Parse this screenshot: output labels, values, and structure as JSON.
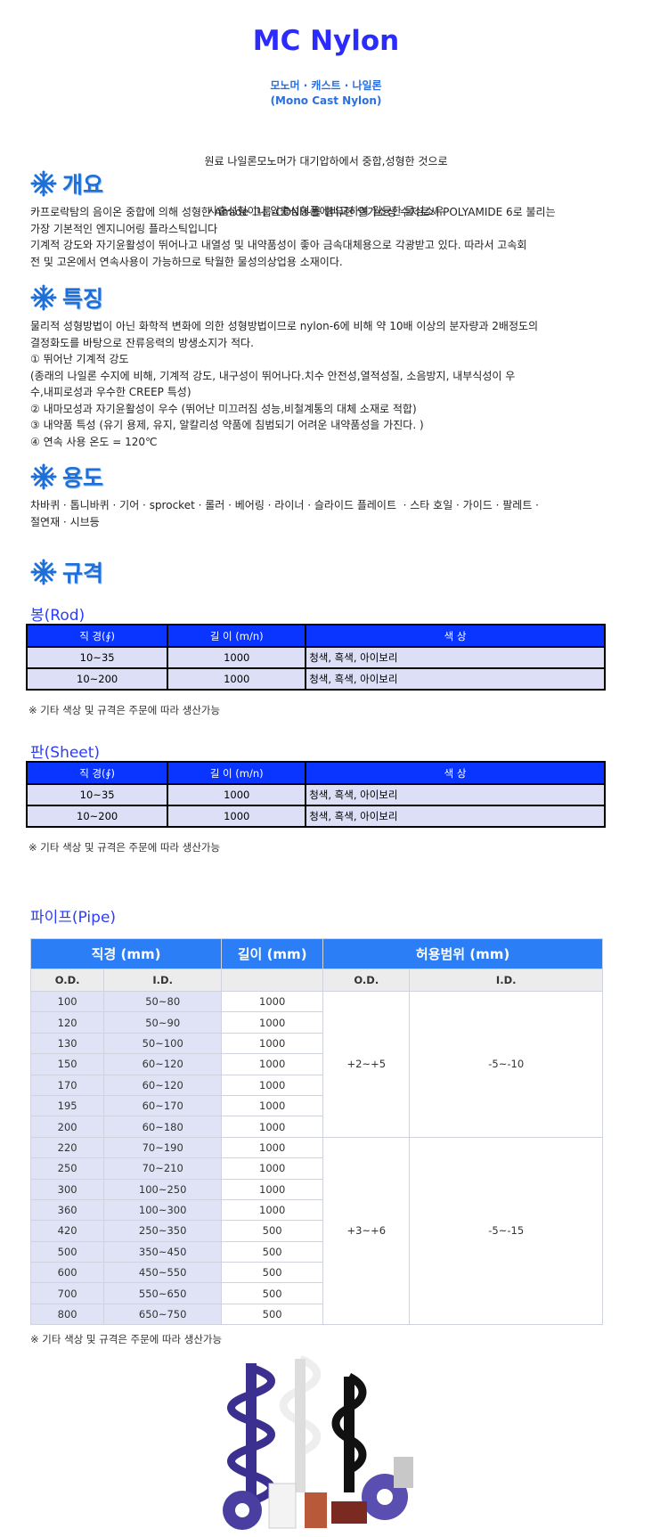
{
  "header": {
    "title": "MC Nylon",
    "subtitle_1": "모노머 · 캐스트 · 나일론",
    "subtitle_2": "(Mono Cast Nylon)",
    "intro": [
      "원료 나일론모노머가 대기압하에서 중합,성형한 것으로",
      "사출성형이나 압출성형품에비교하여 월등한 물성소유"
    ]
  },
  "sections": [
    {
      "heading": "개요",
      "lines": [
        "카프로락탐의 음이온 중합에 의해 성형한 Amide 그룹-CONH-를 함유한 열가소성 수지로서 POLYAMIDE 6로 불리는",
        "가장 기본적인 엔지니어링 플라스틱입니다",
        "기계적 강도와 자기윤활성이 뛰어나고 내열성 및 내약품성이 좋아 금속대체용으로 각광받고 있다. 따라서 고속회",
        "전 및 고온에서 연속사용이 가능하므로 탁월한 물성의상업용 소재이다."
      ]
    },
    {
      "heading": "특징",
      "lines": [
        "물리적 성형방법이 아닌 화학적 변화에 의한 성형방법이므로 nylon-6에 비해 약 10배 이상의 분자량과 2배정도의",
        "결정화도를 바탕으로 잔류응력의 방생소지가 적다.",
        "① 뛰어난 기계적 강도",
        "(종래의 나일론 수지에 비해, 기계적 강도, 내구성이 뛰어나다.치수 안전성,열적성질, 소음방지, 내부식성이 우",
        "수,내피로성과 우수한 CREEP 특성)",
        "② 내마모성과 자기윤활성이 우수 (뛰어난 미끄러짐 성능,비철계통의 대체 소재로 적합)",
        "③ 내약품 특성 (유기 용제, 유지, 알칼리성 약품에 침범되기 어려운 내약품성을 가진다. )",
        "④ 연속 사용 온도 = 120℃"
      ]
    },
    {
      "heading": "용도",
      "lines": [
        "차바퀴 · 톱니바퀴 · 기어 · sprocket · 롤러 · 베어링 · 라이너 · 슬라이드 플레이트  · 스타 호일 · 가이드 · 팔레트 ·",
        "절연재 · 시브등"
      ]
    },
    {
      "heading": "규격",
      "lines": []
    }
  ],
  "rod": {
    "title": "봉(Rod)",
    "columns": [
      "직 경(∮)",
      "길 이 (m/n)",
      "색 상"
    ],
    "rows": [
      [
        "10~35",
        "1000",
        "청색, 흑색, 아이보리"
      ],
      [
        "10~200",
        "1000",
        "청색, 흑색, 아이보리"
      ]
    ],
    "note": "※ 기타 색상 및 규격은 주문에 따라 생산가능"
  },
  "sheet": {
    "title": "판(Sheet)",
    "columns": [
      "직 경(∮)",
      "길 이 (m/n)",
      "색 상"
    ],
    "rows": [
      [
        "10~35",
        "1000",
        "청색, 흑색, 아이보리"
      ],
      [
        "10~200",
        "1000",
        "청색, 흑색, 아이보리"
      ]
    ],
    "note": "※ 기타 색상 및 규격은 주문에 따라 생산가능"
  },
  "pipe": {
    "title": "파이프(Pipe)",
    "group_headers": [
      "직경 (mm)",
      "길이 (mm)",
      "허용범위 (mm)"
    ],
    "sub_headers": [
      "O.D.",
      "I.D.",
      "O.D.",
      "I.D."
    ],
    "groups": [
      {
        "od_tolerance": "+2~+5",
        "id_tolerance": "-5~-10",
        "rows": [
          [
            "100",
            "50~80",
            "1000"
          ],
          [
            "120",
            "50~90",
            "1000"
          ],
          [
            "130",
            "50~100",
            "1000"
          ],
          [
            "150",
            "60~120",
            "1000"
          ],
          [
            "170",
            "60~120",
            "1000"
          ],
          [
            "195",
            "60~170",
            "1000"
          ],
          [
            "200",
            "60~180",
            "1000"
          ]
        ]
      },
      {
        "od_tolerance": "+3~+6",
        "id_tolerance": "-5~-15",
        "rows": [
          [
            "220",
            "70~190",
            "1000"
          ],
          [
            "250",
            "70~210",
            "1000"
          ],
          [
            "300",
            "100~250",
            "1000"
          ],
          [
            "360",
            "100~300",
            "1000"
          ],
          [
            "420",
            "250~350",
            "500"
          ],
          [
            "500",
            "350~450",
            "500"
          ],
          [
            "600",
            "450~550",
            "500"
          ],
          [
            "700",
            "550~650",
            "500"
          ],
          [
            "800",
            "650~750",
            "500"
          ]
        ]
      }
    ],
    "note": "※ 기타 색상 및 규격은 주문에 따라 생산가능"
  }
}
